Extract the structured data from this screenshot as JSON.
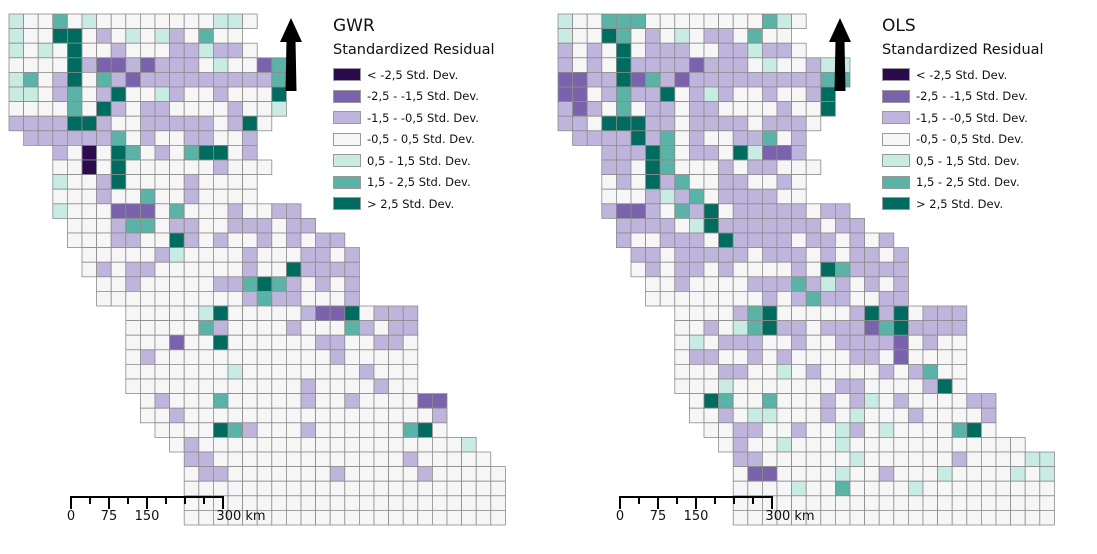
{
  "colors": {
    "c-3": "#2b0a4e",
    "c-2": "#7a62ad",
    "c-1": "#bfb5dc",
    "c0": "#f6f6f6",
    "c1": "#c8ebe4",
    "c2": "#5bb2a6",
    "c3": "#006b5f"
  },
  "legend": {
    "subtitle": "Standardized Residual",
    "classes": [
      {
        "key": "c-3",
        "label": "< -2,5 Std. Dev."
      },
      {
        "key": "c-2",
        "label": "-2,5 - -1,5 Std. Dev."
      },
      {
        "key": "c-1",
        "label": "-1,5 - -0,5 Std. Dev."
      },
      {
        "key": "c0",
        "label": "-0,5 - 0,5 Std. Dev."
      },
      {
        "key": "c1",
        "label": "0,5 - 1,5 Std. Dev."
      },
      {
        "key": "c2",
        "label": "1,5 - 2,5 Std. Dev."
      },
      {
        "key": "c3",
        "label": "> 2,5 Std. Dev."
      }
    ]
  },
  "scalebar": {
    "ticks": [
      "0",
      "75",
      "150",
      "300 km"
    ]
  },
  "maps": [
    {
      "title": "GWR",
      "grid_rows": [
        {
          "start": 0,
          "cells": "1 0 0 2 0 1 0 0 0 0 0 0 0 0 1 1 0"
        },
        {
          "start": 0,
          "cells": "1 0 0 3 3 0 -1 0 1 0 1 -1 0 2 0 0"
        },
        {
          "start": 0,
          "cells": "1 0 1 0 3 0 0 -1 0 0 0 -1 -1 1 -1 -1 0"
        },
        {
          "start": 0,
          "cells": "0 0 0 0 3 -1 -2 -2 -1 -2 -1 -1 -1 0 1 0 0 -2 2"
        },
        {
          "start": 0,
          "cells": "1 2 0 -1 3 0 2 -1 -2 -1 -1 -1 -1 -1 -1 -1 -1 -1 2"
        },
        {
          "start": 0,
          "cells": "1 1 0 -1 2 0 -1 3 0 0 1 -1 0 0 -1 0 0 0 3"
        },
        {
          "start": 0,
          "cells": "0 0 0 0 2 0 3 -1 0 -1 -1 0 0 0 0 -1 0 0 1"
        },
        {
          "start": 0,
          "cells": "-1 -1 -1 -1 3 3 -1 0 0 -1 -1 -1 -1 -1 0 -1 3 0"
        },
        {
          "start": 1,
          "cells": "-1 -1 -1 -1 -1 -1 2 0 -1 0 0 -1 -1 0 0 -1"
        },
        {
          "start": 3,
          "cells": "-1 0 -3 0 3 2 0 -1 0 2 3 3 0 -1"
        },
        {
          "start": 3,
          "cells": "0 0 -3 0 3 0 0 0 0 0 0 -1 0 0 0"
        },
        {
          "start": 3,
          "cells": "1 0 0 -1 3 0 0 0 0 -1 0 0 0 0"
        },
        {
          "start": 3,
          "cells": "0 0 0 -1 0 0 2 0 0 -1 0 0 0 0"
        },
        {
          "start": 3,
          "cells": "1 0 0 0 -2 -2 -2 0 2 0 0 0 -1 0 0 -1 -1"
        },
        {
          "start": 4,
          "cells": "0 0 0 -1 2 2 0 -1 -1 0 0 -1 -1 -1 0 -1 -1"
        },
        {
          "start": 4,
          "cells": "0 0 0 -1 -1 0 0 3 -1 0 -1 0 0 -1 0 -1 0 -1 -1"
        },
        {
          "start": 5,
          "cells": "0 0 0 0 0 -1 1 0 0 0 0 -1 0 0 0 -1 -1 0 -1"
        },
        {
          "start": 5,
          "cells": "0 -1 0 -1 -1 0 0 0 0 0 0 -1 0 0 3 -1 -1 -1 -1"
        },
        {
          "start": 6,
          "cells": "0 0 -1 0 0 0 0 0 -1 -1 2 3 2 -1 0 -1 0 -1"
        },
        {
          "start": 6,
          "cells": "0 0 0 0 0 0 0 0 0 0 -1 2 -1 -1 0 0 0 -1"
        },
        {
          "start": 8,
          "cells": "0 0 0 0 0 1 3 0 0 0 0 0 -1 -2 -2 3 0 -1 -1 -1"
        },
        {
          "start": 8,
          "cells": "0 0 0 0 0 2 -1 0 0 0 0 -1 0 0 0 2 -1 0 -1 -1"
        },
        {
          "start": 8,
          "cells": "0 0 0 -2 0 0 3 0 0 0 0 0 0 -1 -1 0 0 -1 -1 0"
        },
        {
          "start": 8,
          "cells": "0 -1 0 0 0 0 0 0 0 0 0 0 0 0 -1 0 0 0 0 0"
        },
        {
          "start": 8,
          "cells": "0 0 0 0 0 0 0 1 0 0 0 0 0 0 0 0 -1 0 0 0"
        },
        {
          "start": 8,
          "cells": "0 0 0 0 0 0 0 0 0 0 0 0 -1 0 0 0 0 -1 0 0"
        },
        {
          "start": 9,
          "cells": "0 -1 0 0 0 2 0 0 0 0 0 -1 0 0 -1 0 0 0 0 -2 -2"
        },
        {
          "start": 9,
          "cells": "0 0 -1 0 0 0 0 0 0 0 0 0 0 0 0 0 0 0 0 0 -1"
        },
        {
          "start": 10,
          "cells": "0 0 0 0 3 2 -1 0 0 0 -1 0 0 0 0 0 0 2 3 0"
        },
        {
          "start": 11,
          "cells": "0 -1 0 0 0 0 0 0 0 0 0 0 0 0 0 0 0 0 0 0 1"
        },
        {
          "start": 12,
          "cells": "-1 -1 0 0 0 0 0 0 0 0 0 0 0 0 0 -1 0 0 0 0 0"
        },
        {
          "start": 12,
          "cells": "0 -1 -1 0 0 0 0 0 0 0 -1 0 0 0 0 0 -1 0 0 0 0 0"
        },
        {
          "start": 12,
          "cells": "0 0 0 0 0 0 0 0 0 0 0 0 0 0 0 0 0 0 0 0 0 0"
        },
        {
          "start": 12,
          "cells": "0 0 0 0 0 0 0 0 0 0 0 0 0 0 0 0 0 0 0 0 0 0"
        },
        {
          "start": 12,
          "cells": "0 0 0 0 0 0 0 0 0 0 0 0 0 0 0 0 0 0 0 0 0 0"
        }
      ]
    },
    {
      "title": "OLS",
      "grid_rows": [
        {
          "start": 0,
          "cells": "1 0 0 2 2 2 0 0 0 0 0 0 0 0 2 1 0"
        },
        {
          "start": 0,
          "cells": "1 0 0 3 2 0 -1 0 1 0 -1 -1 0 2 0 0"
        },
        {
          "start": 0,
          "cells": "-1 0 -1 0 3 0 -1 -1 -1 0 0 -1 -1 1 -1 -1 0"
        },
        {
          "start": 0,
          "cells": "-1 0 -1 0 3 -1 -1 -1 -1 -2 -1 -1 -1 0 1 0 0 -1 1 1"
        },
        {
          "start": 0,
          "cells": "-2 -2 -1 -1 3 -2 2 -1 -2 -1 -1 -1 -1 -1 -1 -1 -1 -1 2 2"
        },
        {
          "start": 0,
          "cells": "-2 -2 0 -1 2 -1 -1 3 0 -1 1 -1 0 0 -1 0 0 -1 3"
        },
        {
          "start": 0,
          "cells": "-1 -2 -1 0 2 0 -1 -1 0 -1 -1 0 0 0 0 -1 0 0 3"
        },
        {
          "start": 0,
          "cells": "-1 -1 0 3 3 3 -1 -1 0 -1 -1 -1 -1 0 -1 -1 -1 0"
        },
        {
          "start": 1,
          "cells": "-1 -1 -1 -1 3 -1 2 0 -1 0 0 -1 -1 2 0 -1"
        },
        {
          "start": 3,
          "cells": "-1 -1 -1 3 2 0 -1 -1 0 3 1 -2 -2 -1"
        },
        {
          "start": 3,
          "cells": "-1 -1 0 3 2 0 0 0 -1 0 -1 -1 0 0 0"
        },
        {
          "start": 3,
          "cells": "0 -1 0 3 -1 2 0 0 -1 -1 0 0 -1 0"
        },
        {
          "start": 3,
          "cells": "0 0 0 -1 1 -1 2 0 -1 -1 -1 -1 0 0"
        },
        {
          "start": 3,
          "cells": "-1 -2 -2 -1 0 2 -1 3 0 -1 -1 -1 -1 -1 0 -1 -1"
        },
        {
          "start": 4,
          "cells": "-1 -1 -1 -1 0 1 3 -1 -1 -1 -1 -1 -1 -1 0 -1 -1"
        },
        {
          "start": 4,
          "cells": "-1 0 0 -1 -1 -1 0 3 -1 -1 -1 -1 0 -1 -1 0 -1 0 -1"
        },
        {
          "start": 5,
          "cells": "-1 -1 0 -1 -1 -1 -1 -1 0 -1 -1 -1 0 -1 0 -1 -1 0 -1"
        },
        {
          "start": 5,
          "cells": "0 -1 0 -1 -1 0 -1 0 0 0 0 -1 0 3 2 -1 -1 -1 -1"
        },
        {
          "start": 6,
          "cells": "0 0 -1 0 0 0 0 -1 -1 -1 2 -1 1 -1 0 -1 0 -1"
        },
        {
          "start": 6,
          "cells": "0 0 0 0 0 0 0 0 -1 0 -1 2 -1 -1 0 0 -1 -1"
        },
        {
          "start": 8,
          "cells": "0 0 0 0 -1 2 3 0 0 0 0 0 -1 3 -1 3 0 -1 -1 -1"
        },
        {
          "start": 8,
          "cells": "0 0 -1 0 1 2 3 -1 -1 0 -1 -1 -1 -2 2 3 -1 -1 -1 -1"
        },
        {
          "start": 8,
          "cells": "0 1 0 -1 -1 -1 0 0 -1 0 0 -1 -1 -1 -1 -2 0 -1 0 0"
        },
        {
          "start": 8,
          "cells": "0 -1 -1 0 0 -1 0 -1 0 0 0 0 -1 -1 0 -2 0 0 0 0"
        },
        {
          "start": 8,
          "cells": "0 0 0 -1 -1 0 0 1 0 -1 0 0 0 0 -1 0 -1 2 0 0"
        },
        {
          "start": 8,
          "cells": "0 0 0 1 0 0 0 0 0 0 0 -1 -1 0 0 0 0 -1 3 0"
        },
        {
          "start": 9,
          "cells": "0 3 2 0 0 2 0 0 0 -1 0 -1 1 0 -1 0 0 0 0 -1 -1"
        },
        {
          "start": 9,
          "cells": "0 0 -1 0 1 1 0 0 0 -1 0 1 0 0 0 -1 0 0 0 0 -1"
        },
        {
          "start": 10,
          "cells": "0 0 -1 -1 0 0 -1 0 0 1 -1 0 1 0 0 0 0 2 3 0"
        },
        {
          "start": 11,
          "cells": "0 -1 0 0 1 0 0 0 1 0 0 0 0 0 0 0 0 0 0 0 0"
        },
        {
          "start": 12,
          "cells": "-1 -1 0 0 0 0 0 0 1 0 0 0 0 0 0 -1 0 0 0 0 1 1"
        },
        {
          "start": 12,
          "cells": "0 -2 -2 0 0 0 0 1 0 0 -1 0 0 0 1 0 0 0 0 1 0 1"
        },
        {
          "start": 12,
          "cells": "0 0 0 0 1 0 0 2 0 0 0 0 1 0 0 0 0 0 0 0 0 0"
        },
        {
          "start": 12,
          "cells": "0 0 0 0 0 0 0 0 0 0 0 0 0 0 0 0 0 0 0 0 0 0"
        },
        {
          "start": 12,
          "cells": "0 0 0 0 0 0 0 0 0 0 0 0 0 0 0 0 0 0 0 0 0 0"
        }
      ]
    }
  ]
}
